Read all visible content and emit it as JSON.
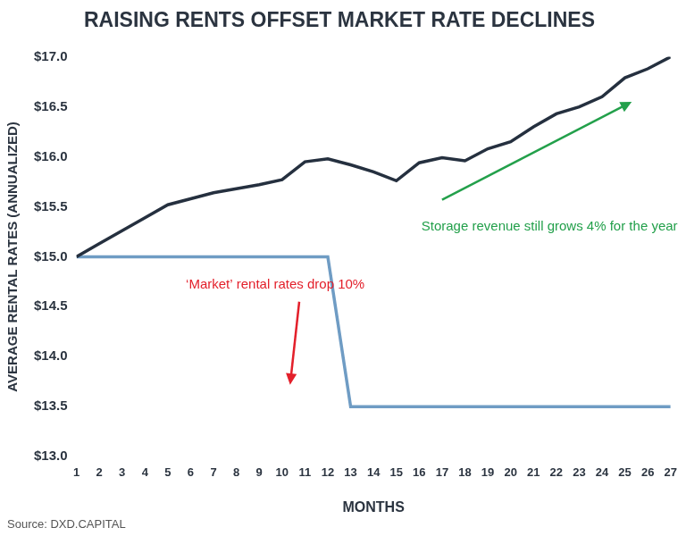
{
  "chart_data": {
    "type": "line",
    "title": "RAISING RENTS OFFSET MARKET RATE DECLINES",
    "x_label": "MONTHS",
    "y_label": "AVERAGE RENTAL RATES (ANNUALIZED)",
    "source": "Source: DXD.CAPITAL",
    "x": [
      1,
      2,
      3,
      4,
      5,
      6,
      7,
      8,
      9,
      10,
      11,
      12,
      13,
      14,
      15,
      16,
      17,
      18,
      19,
      20,
      21,
      22,
      23,
      24,
      25,
      26,
      27
    ],
    "series": [
      {
        "color": "#25303f",
        "values": [
          15.0,
          15.13,
          15.26,
          15.39,
          15.52,
          15.58,
          15.64,
          15.68,
          15.72,
          15.77,
          15.95,
          15.98,
          15.92,
          15.85,
          15.76,
          15.94,
          15.99,
          15.96,
          16.08,
          16.15,
          16.3,
          16.43,
          16.5,
          16.6,
          16.79,
          16.88,
          17.0
        ]
      },
      {
        "color": "#6f9cc4",
        "values": [
          15.0,
          15.0,
          15.0,
          15.0,
          15.0,
          15.0,
          15.0,
          15.0,
          15.0,
          15.0,
          15.0,
          15.0,
          13.5,
          13.5,
          13.5,
          13.5,
          13.5,
          13.5,
          13.5,
          13.5,
          13.5,
          13.5,
          13.5,
          13.5,
          13.5,
          13.5,
          13.5
        ]
      }
    ],
    "xlim": [
      1,
      27
    ],
    "xticks": [
      1,
      2,
      3,
      4,
      5,
      6,
      7,
      8,
      9,
      10,
      11,
      12,
      13,
      14,
      15,
      16,
      17,
      18,
      19,
      20,
      21,
      22,
      23,
      24,
      25,
      26,
      27
    ],
    "ylim": [
      13,
      17
    ],
    "yticks": [
      {
        "value": 13,
        "label": "$13.0"
      },
      {
        "value": 13.5,
        "label": "$13.5"
      },
      {
        "value": 14,
        "label": "$14.0"
      },
      {
        "value": 14.5,
        "label": "$14.5"
      },
      {
        "value": 15,
        "label": "$15.0"
      },
      {
        "value": 15.5,
        "label": "$15.5"
      },
      {
        "value": 16,
        "label": "$16.0"
      },
      {
        "value": 16.5,
        "label": "$16.5"
      },
      {
        "value": 17,
        "label": "$17.0"
      }
    ],
    "grid": false,
    "annotations": [
      {
        "text": "‘Market’ rental rates drop 10%",
        "color": "#e3202b"
      },
      {
        "text": "Storage revenue still grows 4% for the year",
        "color": "#23a04b"
      }
    ]
  }
}
